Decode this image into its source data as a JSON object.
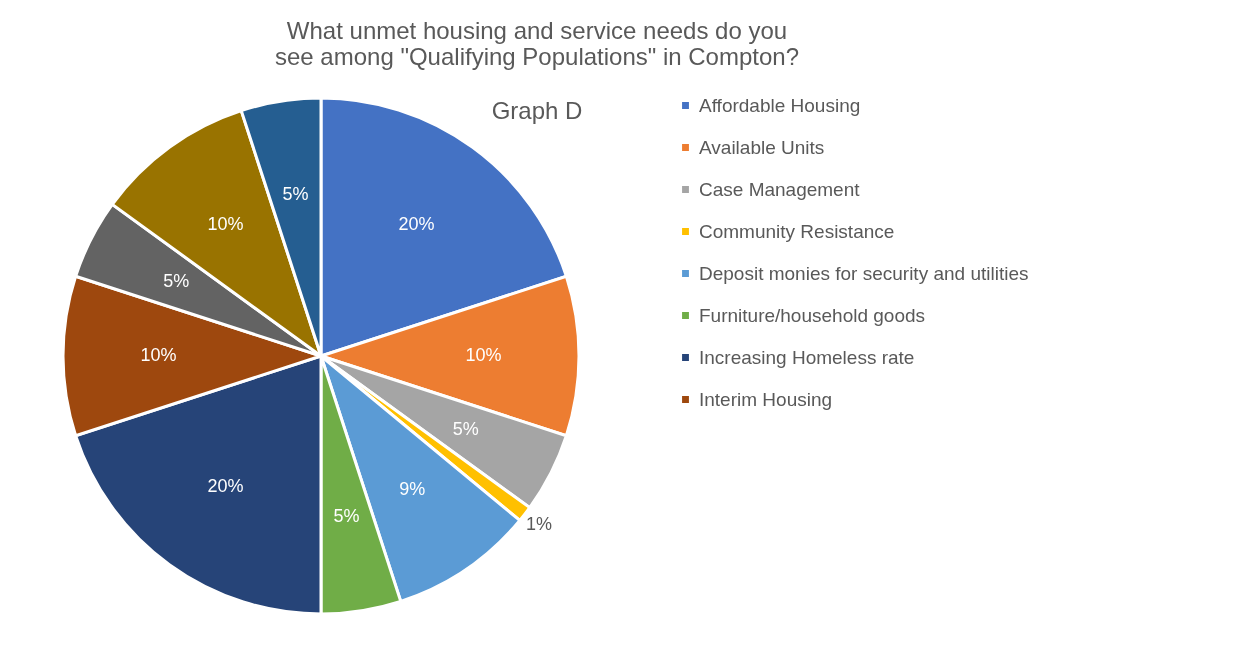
{
  "chart_data": {
    "type": "pie",
    "title": "What unmet housing and service needs do you see among \"Qualifying Populations\" in Compton?",
    "subtitle": "Graph D",
    "categories": [
      "Affordable Housing",
      "Available Units",
      "Case Management",
      "Community Resistance",
      "Deposit monies for security and utilities",
      "Furniture/household goods",
      "Increasing Homeless rate",
      "Interim Housing",
      null,
      null,
      null
    ],
    "values": [
      20,
      10,
      5,
      1,
      9,
      5,
      20,
      10,
      5,
      10,
      5
    ],
    "value_labels": [
      "20%",
      "10%",
      "5%",
      "1%",
      "9%",
      "5%",
      "20%",
      "10%",
      "5%",
      "10%",
      "5%"
    ],
    "colors": [
      "#4472c4",
      "#ed7d31",
      "#a5a5a5",
      "#ffc000",
      "#5b9bd5",
      "#70ad47",
      "#264478",
      "#9e480e",
      "#636363",
      "#997300",
      "#255e91"
    ],
    "legend": "right"
  }
}
